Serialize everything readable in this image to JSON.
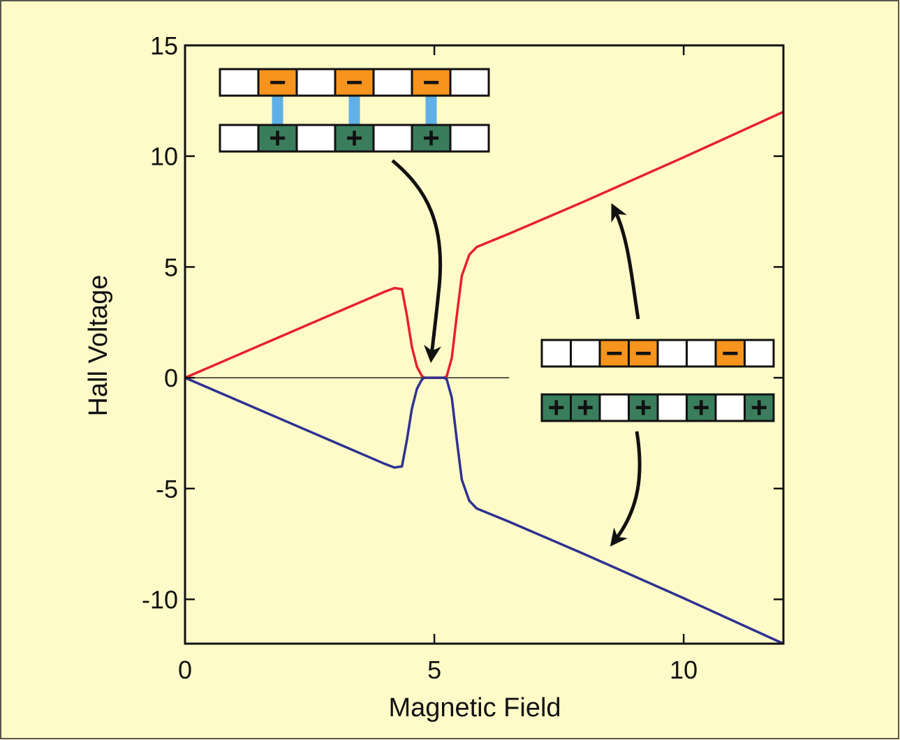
{
  "chart_data": {
    "type": "line",
    "title": "",
    "xlabel": "Magnetic Field",
    "ylabel": "Hall Voltage",
    "xlim": [
      0,
      12
    ],
    "ylim": [
      -12,
      15
    ],
    "xticks": [
      0,
      5,
      10
    ],
    "xtick_labels": [
      "0",
      "5",
      "10"
    ],
    "yticks": [
      15,
      10,
      5,
      0,
      -5,
      -10
    ],
    "ytick_labels": [
      "15",
      "10",
      "5",
      "0",
      "-5",
      "-10"
    ],
    "grid": false,
    "legend": "none",
    "reference_line": {
      "y": 0,
      "x_from": 0,
      "x_to": 6.5
    },
    "series": [
      {
        "color": "#e8202a",
        "x": [
          0,
          1,
          2,
          3,
          4,
          4.2,
          4.35,
          4.45,
          4.55,
          4.65,
          4.75,
          4.8,
          5.0,
          5.2,
          5.25,
          5.35,
          5.45,
          5.55,
          5.7,
          5.85,
          6.5,
          8,
          10,
          12
        ],
        "y": [
          0,
          0.97,
          1.94,
          2.91,
          3.88,
          4.05,
          4.0,
          2.8,
          1.4,
          0.5,
          0.08,
          0,
          0,
          0,
          0.08,
          0.9,
          2.8,
          4.6,
          5.55,
          5.9,
          6.5,
          7.95,
          9.95,
          12.0
        ]
      },
      {
        "color": "#2e3191",
        "x": [
          0,
          1,
          2,
          3,
          4,
          4.2,
          4.35,
          4.45,
          4.55,
          4.65,
          4.75,
          4.8,
          5.0,
          5.2,
          5.25,
          5.35,
          5.45,
          5.55,
          5.7,
          5.85,
          6.5,
          8,
          10,
          12
        ],
        "y": [
          0,
          -0.97,
          -1.94,
          -2.91,
          -3.88,
          -4.05,
          -4.0,
          -2.8,
          -1.4,
          -0.5,
          -0.08,
          0,
          0,
          0,
          -0.08,
          -0.9,
          -2.8,
          -4.6,
          -5.55,
          -5.9,
          -6.5,
          -7.95,
          -9.95,
          -12.0
        ]
      }
    ]
  },
  "insets": {
    "paired": {
      "top_cells": [
        "",
        "−",
        "",
        "−",
        "",
        "−",
        ""
      ],
      "bottom_cells": [
        "",
        "+",
        "",
        "+",
        "",
        "+",
        ""
      ],
      "links": [
        1,
        3,
        5
      ]
    },
    "unpaired": {
      "top_cells": [
        "",
        "",
        "−",
        "−",
        "",
        "",
        "−",
        ""
      ],
      "bottom_cells": [
        "+",
        "+",
        "",
        "+",
        "",
        "+",
        "",
        "+"
      ]
    }
  },
  "colors": {
    "background": "#fffbc8",
    "negative_charge": "#f7941d",
    "positive_charge": "#3a7d5d",
    "bond": "#5fb0e6",
    "arrow": "#111111"
  }
}
